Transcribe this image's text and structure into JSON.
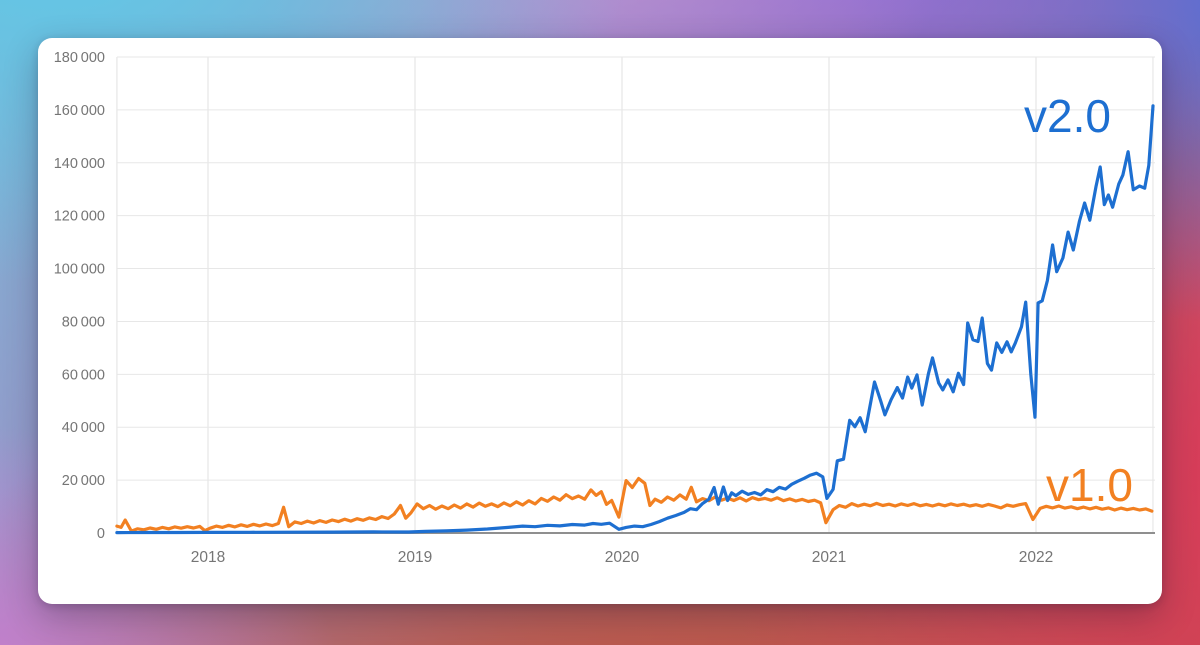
{
  "chart_data": {
    "type": "line",
    "title": "",
    "xlabel": "",
    "ylabel": "",
    "legend_position": "inline-end-of-line",
    "grid": true,
    "x_axis": {
      "range": [
        2017.56,
        2022.565
      ],
      "tick_values": [
        2018,
        2019,
        2020,
        2021,
        2022
      ],
      "tick_labels": [
        "2018",
        "2019",
        "2020",
        "2021",
        "2022"
      ]
    },
    "y_axis": {
      "range": [
        0,
        180000
      ],
      "tick_values": [
        0,
        20000,
        40000,
        60000,
        80000,
        100000,
        120000,
        140000,
        160000,
        180000
      ],
      "tick_labels": [
        "0",
        "20 000",
        "40 000",
        "60 000",
        "80 000",
        "100 000",
        "120 000",
        "140 000",
        "160 000",
        "180 000"
      ]
    },
    "series": [
      {
        "name": "v2.0",
        "label": "v2.0",
        "color": "#1d6fd1",
        "points": [
          [
            2017.56,
            150
          ],
          [
            2017.7,
            180
          ],
          [
            2017.85,
            200
          ],
          [
            2018.0,
            220
          ],
          [
            2018.2,
            260
          ],
          [
            2018.4,
            300
          ],
          [
            2018.6,
            350
          ],
          [
            2018.8,
            420
          ],
          [
            2018.97,
            380
          ],
          [
            2019.05,
            600
          ],
          [
            2019.15,
            800
          ],
          [
            2019.25,
            1100
          ],
          [
            2019.35,
            1500
          ],
          [
            2019.45,
            2100
          ],
          [
            2019.52,
            2600
          ],
          [
            2019.58,
            2400
          ],
          [
            2019.64,
            2900
          ],
          [
            2019.7,
            2700
          ],
          [
            2019.76,
            3200
          ],
          [
            2019.82,
            3000
          ],
          [
            2019.86,
            3600
          ],
          [
            2019.9,
            3300
          ],
          [
            2019.94,
            3700
          ],
          [
            2019.985,
            1400
          ],
          [
            2020.02,
            2100
          ],
          [
            2020.06,
            2600
          ],
          [
            2020.1,
            2400
          ],
          [
            2020.14,
            3200
          ],
          [
            2020.18,
            4300
          ],
          [
            2020.22,
            5600
          ],
          [
            2020.26,
            6600
          ],
          [
            2020.3,
            7800
          ],
          [
            2020.33,
            9200
          ],
          [
            2020.36,
            8800
          ],
          [
            2020.39,
            11200
          ],
          [
            2020.42,
            12800
          ],
          [
            2020.445,
            17200
          ],
          [
            2020.465,
            10900
          ],
          [
            2020.49,
            17400
          ],
          [
            2020.51,
            12300
          ],
          [
            2020.53,
            15200
          ],
          [
            2020.55,
            14100
          ],
          [
            2020.58,
            15800
          ],
          [
            2020.61,
            14600
          ],
          [
            2020.64,
            15300
          ],
          [
            2020.67,
            14400
          ],
          [
            2020.7,
            16400
          ],
          [
            2020.73,
            15600
          ],
          [
            2020.76,
            17300
          ],
          [
            2020.79,
            16600
          ],
          [
            2020.82,
            18400
          ],
          [
            2020.85,
            19600
          ],
          [
            2020.88,
            20700
          ],
          [
            2020.91,
            21900
          ],
          [
            2020.94,
            22600
          ],
          [
            2020.97,
            21200
          ],
          [
            2020.99,
            13100
          ],
          [
            2021.02,
            16500
          ],
          [
            2021.04,
            27300
          ],
          [
            2021.07,
            27900
          ],
          [
            2021.1,
            42600
          ],
          [
            2021.125,
            40200
          ],
          [
            2021.15,
            43600
          ],
          [
            2021.175,
            38300
          ],
          [
            2021.22,
            57100
          ],
          [
            2021.25,
            49800
          ],
          [
            2021.27,
            44700
          ],
          [
            2021.3,
            50400
          ],
          [
            2021.33,
            55000
          ],
          [
            2021.355,
            51000
          ],
          [
            2021.38,
            59000
          ],
          [
            2021.4,
            54800
          ],
          [
            2021.425,
            59800
          ],
          [
            2021.45,
            48400
          ],
          [
            2021.48,
            60200
          ],
          [
            2021.5,
            66200
          ],
          [
            2021.53,
            56700
          ],
          [
            2021.55,
            54100
          ],
          [
            2021.575,
            57900
          ],
          [
            2021.6,
            53400
          ],
          [
            2021.625,
            60400
          ],
          [
            2021.65,
            56100
          ],
          [
            2021.67,
            79400
          ],
          [
            2021.695,
            73100
          ],
          [
            2021.72,
            72400
          ],
          [
            2021.74,
            81300
          ],
          [
            2021.765,
            64100
          ],
          [
            2021.785,
            61600
          ],
          [
            2021.81,
            71900
          ],
          [
            2021.835,
            68300
          ],
          [
            2021.86,
            72300
          ],
          [
            2021.88,
            68500
          ],
          [
            2021.9,
            71800
          ],
          [
            2021.93,
            78000
          ],
          [
            2021.95,
            87300
          ],
          [
            2021.975,
            60000
          ],
          [
            2021.995,
            43800
          ],
          [
            2022.01,
            87000
          ],
          [
            2022.03,
            87800
          ],
          [
            2022.055,
            95500
          ],
          [
            2022.08,
            108900
          ],
          [
            2022.1,
            98800
          ],
          [
            2022.13,
            104000
          ],
          [
            2022.155,
            113800
          ],
          [
            2022.18,
            107000
          ],
          [
            2022.21,
            118000
          ],
          [
            2022.235,
            124800
          ],
          [
            2022.26,
            118300
          ],
          [
            2022.29,
            131000
          ],
          [
            2022.31,
            138400
          ],
          [
            2022.33,
            124200
          ],
          [
            2022.35,
            127800
          ],
          [
            2022.37,
            123200
          ],
          [
            2022.4,
            132000
          ],
          [
            2022.42,
            135400
          ],
          [
            2022.445,
            144200
          ],
          [
            2022.47,
            129800
          ],
          [
            2022.5,
            131200
          ],
          [
            2022.525,
            130400
          ],
          [
            2022.545,
            139000
          ],
          [
            2022.565,
            161500
          ]
        ]
      },
      {
        "name": "v1.0",
        "label": "v1.0",
        "color": "#f28021",
        "points": [
          [
            2017.56,
            2600
          ],
          [
            2017.58,
            2100
          ],
          [
            2017.6,
            4900
          ],
          [
            2017.63,
            700
          ],
          [
            2017.66,
            1600
          ],
          [
            2017.69,
            1200
          ],
          [
            2017.72,
            1900
          ],
          [
            2017.75,
            1400
          ],
          [
            2017.78,
            2100
          ],
          [
            2017.81,
            1600
          ],
          [
            2017.84,
            2300
          ],
          [
            2017.87,
            1800
          ],
          [
            2017.9,
            2400
          ],
          [
            2017.93,
            1900
          ],
          [
            2017.96,
            2500
          ],
          [
            2017.985,
            900
          ],
          [
            2018.01,
            1800
          ],
          [
            2018.04,
            2600
          ],
          [
            2018.07,
            2100
          ],
          [
            2018.1,
            2900
          ],
          [
            2018.13,
            2300
          ],
          [
            2018.16,
            3100
          ],
          [
            2018.19,
            2500
          ],
          [
            2018.22,
            3300
          ],
          [
            2018.25,
            2700
          ],
          [
            2018.28,
            3400
          ],
          [
            2018.31,
            2800
          ],
          [
            2018.34,
            3600
          ],
          [
            2018.365,
            9700
          ],
          [
            2018.39,
            2400
          ],
          [
            2018.42,
            4200
          ],
          [
            2018.45,
            3600
          ],
          [
            2018.48,
            4500
          ],
          [
            2018.51,
            3800
          ],
          [
            2018.54,
            4700
          ],
          [
            2018.57,
            4000
          ],
          [
            2018.6,
            4900
          ],
          [
            2018.63,
            4300
          ],
          [
            2018.66,
            5200
          ],
          [
            2018.69,
            4500
          ],
          [
            2018.72,
            5400
          ],
          [
            2018.75,
            4800
          ],
          [
            2018.78,
            5700
          ],
          [
            2018.81,
            5100
          ],
          [
            2018.84,
            6200
          ],
          [
            2018.87,
            5500
          ],
          [
            2018.9,
            7200
          ],
          [
            2018.93,
            10400
          ],
          [
            2018.955,
            5600
          ],
          [
            2018.98,
            7600
          ],
          [
            2019.01,
            11000
          ],
          [
            2019.04,
            9200
          ],
          [
            2019.07,
            10400
          ],
          [
            2019.1,
            9000
          ],
          [
            2019.13,
            10200
          ],
          [
            2019.16,
            9200
          ],
          [
            2019.19,
            10600
          ],
          [
            2019.22,
            9400
          ],
          [
            2019.25,
            11000
          ],
          [
            2019.28,
            9800
          ],
          [
            2019.31,
            11300
          ],
          [
            2019.34,
            10100
          ],
          [
            2019.37,
            11000
          ],
          [
            2019.4,
            10000
          ],
          [
            2019.43,
            11400
          ],
          [
            2019.46,
            10300
          ],
          [
            2019.49,
            11800
          ],
          [
            2019.52,
            10600
          ],
          [
            2019.55,
            12200
          ],
          [
            2019.58,
            11000
          ],
          [
            2019.61,
            13100
          ],
          [
            2019.64,
            12000
          ],
          [
            2019.67,
            13600
          ],
          [
            2019.7,
            12400
          ],
          [
            2019.73,
            14500
          ],
          [
            2019.76,
            13000
          ],
          [
            2019.79,
            14000
          ],
          [
            2019.82,
            12800
          ],
          [
            2019.85,
            16300
          ],
          [
            2019.875,
            14200
          ],
          [
            2019.9,
            15600
          ],
          [
            2019.925,
            10800
          ],
          [
            2019.95,
            12300
          ],
          [
            2019.985,
            6000
          ],
          [
            2020.02,
            19800
          ],
          [
            2020.05,
            17200
          ],
          [
            2020.08,
            20600
          ],
          [
            2020.11,
            18800
          ],
          [
            2020.135,
            10400
          ],
          [
            2020.16,
            12800
          ],
          [
            2020.19,
            11600
          ],
          [
            2020.22,
            13600
          ],
          [
            2020.25,
            12400
          ],
          [
            2020.28,
            14400
          ],
          [
            2020.31,
            12800
          ],
          [
            2020.335,
            17300
          ],
          [
            2020.36,
            11800
          ],
          [
            2020.39,
            13000
          ],
          [
            2020.42,
            12200
          ],
          [
            2020.45,
            13600
          ],
          [
            2020.48,
            12400
          ],
          [
            2020.51,
            13200
          ],
          [
            2020.54,
            12300
          ],
          [
            2020.57,
            13300
          ],
          [
            2020.6,
            12100
          ],
          [
            2020.63,
            13400
          ],
          [
            2020.66,
            12600
          ],
          [
            2020.69,
            13100
          ],
          [
            2020.72,
            12400
          ],
          [
            2020.75,
            13300
          ],
          [
            2020.78,
            12200
          ],
          [
            2020.81,
            12900
          ],
          [
            2020.84,
            12100
          ],
          [
            2020.87,
            12700
          ],
          [
            2020.9,
            11900
          ],
          [
            2020.93,
            12400
          ],
          [
            2020.96,
            11400
          ],
          [
            2020.985,
            3900
          ],
          [
            2021.02,
            8800
          ],
          [
            2021.05,
            10400
          ],
          [
            2021.08,
            9700
          ],
          [
            2021.11,
            11100
          ],
          [
            2021.14,
            10200
          ],
          [
            2021.17,
            10900
          ],
          [
            2021.2,
            10300
          ],
          [
            2021.23,
            11200
          ],
          [
            2021.26,
            10400
          ],
          [
            2021.29,
            10900
          ],
          [
            2021.32,
            10200
          ],
          [
            2021.35,
            11000
          ],
          [
            2021.38,
            10400
          ],
          [
            2021.41,
            11100
          ],
          [
            2021.44,
            10300
          ],
          [
            2021.47,
            10800
          ],
          [
            2021.5,
            10200
          ],
          [
            2021.53,
            10900
          ],
          [
            2021.56,
            10300
          ],
          [
            2021.59,
            11000
          ],
          [
            2021.62,
            10400
          ],
          [
            2021.65,
            10900
          ],
          [
            2021.68,
            10200
          ],
          [
            2021.71,
            10700
          ],
          [
            2021.74,
            10100
          ],
          [
            2021.77,
            10800
          ],
          [
            2021.8,
            10200
          ],
          [
            2021.83,
            9500
          ],
          [
            2021.86,
            10600
          ],
          [
            2021.89,
            10100
          ],
          [
            2021.92,
            10700
          ],
          [
            2021.95,
            11100
          ],
          [
            2021.985,
            5100
          ],
          [
            2022.02,
            9300
          ],
          [
            2022.05,
            10100
          ],
          [
            2022.08,
            9500
          ],
          [
            2022.11,
            10200
          ],
          [
            2022.14,
            9400
          ],
          [
            2022.17,
            9900
          ],
          [
            2022.2,
            9200
          ],
          [
            2022.23,
            9800
          ],
          [
            2022.26,
            9100
          ],
          [
            2022.29,
            9700
          ],
          [
            2022.32,
            9000
          ],
          [
            2022.35,
            9500
          ],
          [
            2022.38,
            8700
          ],
          [
            2022.41,
            9400
          ],
          [
            2022.44,
            8800
          ],
          [
            2022.47,
            9300
          ],
          [
            2022.5,
            8700
          ],
          [
            2022.53,
            9100
          ],
          [
            2022.56,
            8300
          ]
        ]
      }
    ],
    "style": {
      "gridline_color": "#e7e7e7",
      "vertical_gridline_color": "#e2e2e2",
      "axis_line_color": "#8f8f8f",
      "tick_label_color": "#757575",
      "line_width": 3.2
    }
  }
}
